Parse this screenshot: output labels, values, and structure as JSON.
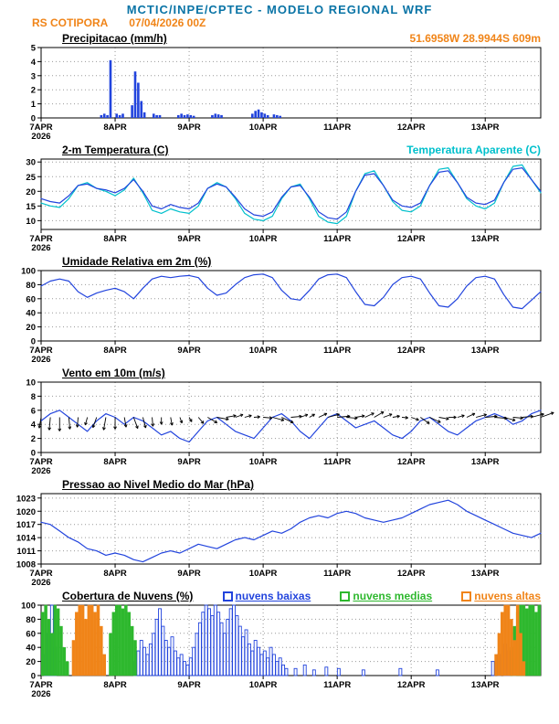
{
  "header": {
    "title": "MCTIC/INPE/CPTEC - MODELO REGIONAL WRF",
    "station": "RS COTIPORA",
    "run": "07/04/2026 00Z",
    "location": "51.6958W 28.9944S 609m"
  },
  "colors": {
    "header_title": "#0a74a6",
    "orange": "#f08418",
    "cyan": "#00c0cc",
    "series_blue": "#2244dd",
    "green": "#2eb82e",
    "grid": "#999999"
  },
  "x_axis": {
    "span_days": 6.75,
    "step_hours": 3,
    "tick_labels": [
      "7APR",
      "8APR",
      "9APR",
      "10APR",
      "11APR",
      "12APR",
      "13APR"
    ],
    "year_label": "2026"
  },
  "chart_data": [
    {
      "type": "bar",
      "title": "Precipitacao (mm/h)",
      "ylim": [
        0,
        5
      ],
      "yticks": [
        0,
        1,
        2,
        3,
        4,
        5
      ],
      "bar_color": "#2244dd",
      "x_unit": "hours",
      "segments": [
        {
          "start": 19,
          "values": [
            0.2,
            0.3,
            0.2
          ]
        },
        {
          "start": 22,
          "values": [
            4.1
          ]
        },
        {
          "start": 24,
          "values": [
            0.3,
            0.2,
            0.3
          ]
        },
        {
          "start": 29,
          "values": [
            0.9,
            3.3,
            2.5,
            1.2,
            0.4
          ]
        },
        {
          "start": 36,
          "values": [
            0.3,
            0.2,
            0.2
          ]
        },
        {
          "start": 44,
          "values": [
            0.2,
            0.3,
            0.2,
            0.25,
            0.2,
            0.15
          ]
        },
        {
          "start": 55,
          "values": [
            0.2,
            0.3,
            0.25,
            0.2
          ]
        },
        {
          "start": 68,
          "values": [
            0.3,
            0.5,
            0.6,
            0.4,
            0.3,
            0.2
          ]
        },
        {
          "start": 75,
          "values": [
            0.25,
            0.2,
            0.15
          ]
        }
      ]
    },
    {
      "type": "line",
      "title": "2-m Temperatura (C)",
      "ylim": [
        7,
        31
      ],
      "yticks": [
        10,
        15,
        20,
        25,
        30
      ],
      "series": [
        {
          "name": "temperatura-aparente",
          "legend": "Temperatura Aparente (C)",
          "color": "#00c0cc",
          "values": [
            16.0,
            15.0,
            14.5,
            17.5,
            22.0,
            23.0,
            21.0,
            20.0,
            18.5,
            20.5,
            24.5,
            19.5,
            13.5,
            12.5,
            14.0,
            13.0,
            12.5,
            15.0,
            21.0,
            23.0,
            21.5,
            17.5,
            12.5,
            10.5,
            10.0,
            11.5,
            17.5,
            21.5,
            22.5,
            17.5,
            11.5,
            9.5,
            9.0,
            11.5,
            20.0,
            26.0,
            27.0,
            22.0,
            16.5,
            13.5,
            13.0,
            15.0,
            22.0,
            27.5,
            28.0,
            23.0,
            17.5,
            15.0,
            14.0,
            16.0,
            23.0,
            28.5,
            29.0,
            24.0,
            19.5
          ]
        },
        {
          "name": "temperatura-2m",
          "color": "#2244dd",
          "values": [
            17.5,
            16.5,
            16.0,
            18.5,
            22.0,
            22.5,
            21.0,
            20.5,
            19.5,
            21.0,
            24.0,
            20.0,
            15.0,
            14.0,
            15.5,
            14.5,
            14.0,
            16.0,
            21.0,
            22.5,
            21.5,
            18.0,
            14.0,
            12.0,
            11.5,
            13.0,
            18.0,
            21.5,
            22.0,
            18.0,
            13.0,
            11.0,
            10.5,
            13.0,
            20.0,
            25.5,
            26.0,
            22.0,
            17.0,
            15.0,
            14.5,
            16.0,
            22.0,
            26.5,
            27.0,
            23.0,
            18.0,
            16.0,
            15.5,
            17.0,
            23.0,
            27.5,
            28.0,
            24.0,
            20.0
          ]
        }
      ]
    },
    {
      "type": "line",
      "title": "Umidade Relativa em 2m (%)",
      "ylim": [
        0,
        100
      ],
      "yticks": [
        0,
        20,
        40,
        60,
        80,
        100
      ],
      "series": [
        {
          "name": "umidade-relativa",
          "color": "#2244dd",
          "values": [
            78,
            85,
            88,
            85,
            70,
            62,
            68,
            72,
            75,
            70,
            60,
            75,
            88,
            92,
            90,
            92,
            93,
            90,
            75,
            65,
            68,
            80,
            90,
            94,
            95,
            90,
            72,
            60,
            58,
            72,
            88,
            94,
            95,
            90,
            70,
            52,
            50,
            62,
            80,
            90,
            92,
            88,
            68,
            50,
            48,
            60,
            78,
            90,
            92,
            88,
            66,
            48,
            46,
            58,
            70
          ]
        }
      ]
    },
    {
      "type": "line",
      "title": "Vento em 10m (m/s)",
      "ylim": [
        0,
        10
      ],
      "yticks": [
        0,
        2,
        4,
        6,
        8,
        10
      ],
      "series": [
        {
          "name": "velocidade-vento",
          "color": "#2244dd",
          "values": [
            4.5,
            5.5,
            6.0,
            5.0,
            4.0,
            3.0,
            4.5,
            5.5,
            5.0,
            4.0,
            5.0,
            4.5,
            3.5,
            2.5,
            3.0,
            2.0,
            1.5,
            3.0,
            4.5,
            5.0,
            4.0,
            3.0,
            2.5,
            2.0,
            3.5,
            5.0,
            5.5,
            4.5,
            3.0,
            2.0,
            3.5,
            5.0,
            5.5,
            4.5,
            3.5,
            4.0,
            4.5,
            3.5,
            2.5,
            2.0,
            3.0,
            4.5,
            5.0,
            4.0,
            3.0,
            2.5,
            3.5,
            4.5,
            5.0,
            5.5,
            5.0,
            4.0,
            4.5,
            5.5,
            6.0
          ]
        }
      ],
      "barbs": {
        "baseline_value": 5,
        "color": "#000000",
        "angles_deg": [
          -100,
          -95,
          -90,
          -85,
          -95,
          -105,
          -110,
          -100,
          -90,
          -80,
          -70,
          -75,
          -85,
          -90,
          -80,
          -70,
          -60,
          -50,
          -30,
          -10,
          10,
          20,
          15,
          5,
          -5,
          -15,
          -25,
          5,
          20,
          30,
          25,
          15,
          5,
          -5,
          10,
          25,
          30,
          20,
          10,
          -5,
          -20,
          -35,
          -25,
          -10,
          0,
          15,
          25,
          15,
          5,
          -5,
          -15,
          -5,
          5,
          15,
          20
        ]
      }
    },
    {
      "type": "line",
      "title": "Pressao ao Nivel Medio do Mar (hPa)",
      "ylim": [
        1008,
        1024
      ],
      "yticks": [
        1008,
        1011,
        1014,
        1017,
        1020,
        1023
      ],
      "series": [
        {
          "name": "pressao-nivel-mar",
          "color": "#2244dd",
          "values": [
            1017.5,
            1017.0,
            1015.5,
            1014.0,
            1013.0,
            1011.5,
            1011.0,
            1010.0,
            1010.5,
            1010.0,
            1009.0,
            1008.5,
            1009.5,
            1010.5,
            1011.0,
            1010.5,
            1011.5,
            1012.5,
            1012.0,
            1011.5,
            1012.5,
            1013.5,
            1014.0,
            1013.5,
            1014.5,
            1015.5,
            1015.0,
            1016.0,
            1017.5,
            1018.5,
            1019.0,
            1018.5,
            1019.5,
            1020.0,
            1019.5,
            1018.5,
            1018.0,
            1017.5,
            1018.0,
            1018.5,
            1019.5,
            1020.5,
            1021.5,
            1022.0,
            1022.5,
            1021.5,
            1020.0,
            1019.0,
            1018.0,
            1017.0,
            1016.0,
            1015.0,
            1014.5,
            1014.0,
            1015.0
          ]
        }
      ]
    },
    {
      "type": "bar-multi",
      "title": "Cobertura de Nuvens (%)",
      "ylim": [
        0,
        100
      ],
      "yticks": [
        0,
        20,
        40,
        60,
        80,
        100
      ],
      "x_unit": "hours",
      "series": [
        {
          "name": "nuvens-baixas",
          "label": "nuvens baixas",
          "color": "#2244dd",
          "style": "outline",
          "segments": [
            {
              "start": 1,
              "values": [
                30,
                60,
                100,
                40
              ]
            },
            {
              "start": 30,
              "values": [
                20,
                35,
                50,
                40,
                30,
                45,
                60,
                80,
                95,
                70,
                50,
                40,
                55,
                35,
                25,
                30,
                20,
                15,
                25,
                40,
                60,
                75,
                90,
                100,
                95,
                85,
                100,
                90,
                75,
                60,
                80,
                95,
                100,
                85,
                70,
                55,
                65,
                45,
                35,
                50,
                40,
                30,
                35,
                25,
                40,
                30,
                20,
                25,
                15,
                10
              ]
            },
            {
              "start": 82,
              "values": [
                10
              ]
            },
            {
              "start": 85,
              "values": [
                15
              ]
            },
            {
              "start": 88,
              "values": [
                8
              ]
            },
            {
              "start": 92,
              "values": [
                12
              ]
            },
            {
              "start": 96,
              "values": [
                10
              ]
            },
            {
              "start": 104,
              "values": [
                8
              ]
            },
            {
              "start": 116,
              "values": [
                10
              ]
            },
            {
              "start": 128,
              "values": [
                8
              ]
            },
            {
              "start": 146,
              "values": [
                20,
                0,
                30,
                0,
                45,
                35,
                0,
                25
              ]
            }
          ]
        },
        {
          "name": "nuvens-medias",
          "label": "nuvens medias",
          "color": "#2eb82e",
          "style": "fill",
          "segments": [
            {
              "start": 0,
              "values": [
                90,
                100,
                80,
                60,
                100,
                95,
                70,
                40,
                20
              ]
            },
            {
              "start": 22,
              "values": [
                60,
                90,
                100,
                100,
                95,
                100,
                90,
                70,
                50
              ]
            },
            {
              "start": 152,
              "values": [
                40,
                70,
                90,
                100,
                100,
                95,
                100,
                100,
                90,
                100
              ]
            }
          ]
        },
        {
          "name": "nuvens-altas",
          "label": "nuvens altas",
          "color": "#f08418",
          "style": "fill",
          "segments": [
            {
              "start": 10,
              "values": [
                50,
                90,
                100,
                100,
                80,
                100,
                100,
                90,
                100,
                70,
                30
              ]
            },
            {
              "start": 147,
              "values": [
                30,
                60,
                90,
                100,
                100,
                80,
                50,
                100,
                60,
                20
              ]
            }
          ]
        }
      ]
    }
  ]
}
